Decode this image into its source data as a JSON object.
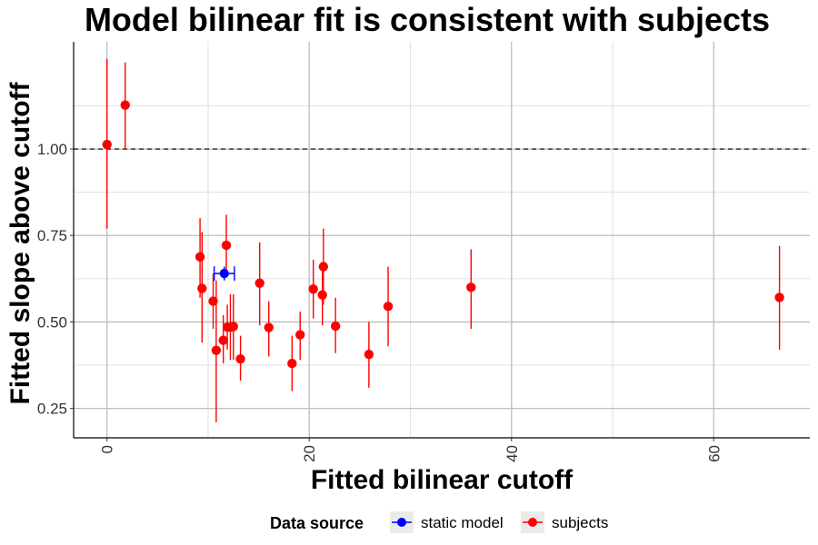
{
  "chart_data": {
    "type": "scatter",
    "title": "Model bilinear fit is consistent with subjects",
    "xlabel": "Fitted bilinear cutoff",
    "ylabel": "Fitted slope above cutoff",
    "xlim": [
      -3.3,
      69.5
    ],
    "ylim": [
      0.165,
      1.31
    ],
    "x_ticks": [
      0,
      20,
      40,
      60
    ],
    "y_ticks": [
      0.25,
      0.5,
      0.75,
      1.0
    ],
    "x_tick_labels": [
      "0",
      "20",
      "40",
      "60"
    ],
    "y_tick_labels": [
      "0.25",
      "0.50",
      "0.75",
      "1.00"
    ],
    "reference_line": {
      "y": 1.0,
      "style": "dashed"
    },
    "grid": true,
    "legend": {
      "title": "Data source",
      "position": "bottom",
      "entries": [
        "static model",
        "subjects"
      ]
    },
    "series": [
      {
        "name": "static model",
        "color": "#0000ff",
        "points": [
          {
            "x": 11.6,
            "y": 0.64,
            "ylo": 0.62,
            "yhi": 0.66,
            "xlo": 10.6,
            "xhi": 12.6
          }
        ]
      },
      {
        "name": "subjects",
        "color": "#ff0000",
        "points": [
          {
            "x": 0.0,
            "y": 1.013,
            "ylo": 0.77,
            "yhi": 1.26
          },
          {
            "x": 1.8,
            "y": 1.127,
            "ylo": 1.0,
            "yhi": 1.25
          },
          {
            "x": 9.2,
            "y": 0.688,
            "ylo": 0.57,
            "yhi": 0.8
          },
          {
            "x": 9.4,
            "y": 0.597,
            "ylo": 0.44,
            "yhi": 0.76
          },
          {
            "x": 10.5,
            "y": 0.56,
            "ylo": 0.48,
            "yhi": 0.64
          },
          {
            "x": 10.8,
            "y": 0.418,
            "ylo": 0.21,
            "yhi": 0.62
          },
          {
            "x": 11.5,
            "y": 0.447,
            "ylo": 0.38,
            "yhi": 0.52
          },
          {
            "x": 11.8,
            "y": 0.722,
            "ylo": 0.63,
            "yhi": 0.81
          },
          {
            "x": 11.9,
            "y": 0.485,
            "ylo": 0.42,
            "yhi": 0.55
          },
          {
            "x": 12.2,
            "y": 0.485,
            "ylo": 0.39,
            "yhi": 0.58
          },
          {
            "x": 12.5,
            "y": 0.487,
            "ylo": 0.39,
            "yhi": 0.58
          },
          {
            "x": 13.2,
            "y": 0.393,
            "ylo": 0.33,
            "yhi": 0.46
          },
          {
            "x": 15.1,
            "y": 0.612,
            "ylo": 0.49,
            "yhi": 0.73
          },
          {
            "x": 16.0,
            "y": 0.484,
            "ylo": 0.4,
            "yhi": 0.56
          },
          {
            "x": 18.3,
            "y": 0.38,
            "ylo": 0.3,
            "yhi": 0.46
          },
          {
            "x": 19.1,
            "y": 0.463,
            "ylo": 0.39,
            "yhi": 0.53
          },
          {
            "x": 20.4,
            "y": 0.595,
            "ylo": 0.51,
            "yhi": 0.68
          },
          {
            "x": 21.3,
            "y": 0.578,
            "ylo": 0.49,
            "yhi": 0.66
          },
          {
            "x": 21.4,
            "y": 0.66,
            "ylo": 0.55,
            "yhi": 0.77
          },
          {
            "x": 22.6,
            "y": 0.488,
            "ylo": 0.41,
            "yhi": 0.57
          },
          {
            "x": 25.9,
            "y": 0.406,
            "ylo": 0.31,
            "yhi": 0.5
          },
          {
            "x": 27.8,
            "y": 0.545,
            "ylo": 0.43,
            "yhi": 0.66
          },
          {
            "x": 36.0,
            "y": 0.6,
            "ylo": 0.48,
            "yhi": 0.71
          },
          {
            "x": 66.5,
            "y": 0.571,
            "ylo": 0.42,
            "yhi": 0.72
          }
        ]
      }
    ]
  }
}
